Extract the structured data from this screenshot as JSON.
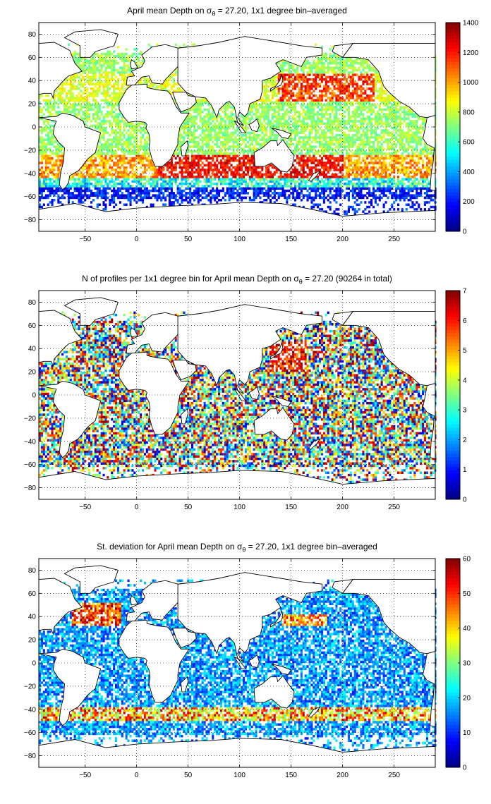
{
  "chart_data": [
    {
      "type": "heatmap",
      "title_prefix": "April mean Depth on ",
      "title_symbol": "σ",
      "title_subscript": "θ",
      "title_suffix": " = 27.20, 1x1 degree bin–averaged",
      "xlabel": "",
      "ylabel": "",
      "xlim": [
        -95,
        290
      ],
      "ylim": [
        -90,
        90
      ],
      "xticks": [
        -50,
        0,
        50,
        100,
        150,
        200,
        250
      ],
      "yticks": [
        -80,
        -60,
        -40,
        -20,
        0,
        20,
        40,
        60,
        80
      ],
      "colorbar": {
        "min": 0,
        "max": 1400,
        "ticks": [
          0,
          200,
          400,
          600,
          800,
          1000,
          1200,
          1400
        ]
      },
      "colormap": "jet",
      "grid": true
    },
    {
      "type": "heatmap",
      "title_prefix": "N of profiles per 1x1 degree bin for April mean Depth on ",
      "title_symbol": "σ",
      "title_subscript": "θ",
      "title_suffix": " = 27.20 (90264 in total)",
      "xlabel": "",
      "ylabel": "",
      "xlim": [
        -95,
        290
      ],
      "ylim": [
        -90,
        90
      ],
      "xticks": [
        -50,
        0,
        50,
        100,
        150,
        200,
        250
      ],
      "yticks": [
        -80,
        -60,
        -40,
        -20,
        0,
        20,
        40,
        60,
        80
      ],
      "colorbar": {
        "min": 0,
        "max": 7,
        "ticks": [
          0,
          1,
          2,
          3,
          4,
          5,
          6,
          7
        ]
      },
      "colormap": "jet",
      "grid": true
    },
    {
      "type": "heatmap",
      "title_prefix": "St. deviation for April mean Depth on ",
      "title_symbol": "σ",
      "title_subscript": "θ",
      "title_suffix": " = 27.20, 1x1 degree bin–averaged",
      "xlabel": "",
      "ylabel": "",
      "xlim": [
        -95,
        290
      ],
      "ylim": [
        -90,
        90
      ],
      "xticks": [
        -50,
        0,
        50,
        100,
        150,
        200,
        250
      ],
      "yticks": [
        -80,
        -60,
        -40,
        -20,
        0,
        20,
        40,
        60,
        80
      ],
      "colorbar": {
        "min": 0,
        "max": 60,
        "ticks": [
          0,
          10,
          20,
          30,
          40,
          50,
          60
        ]
      },
      "colormap": "jet",
      "grid": true
    }
  ]
}
